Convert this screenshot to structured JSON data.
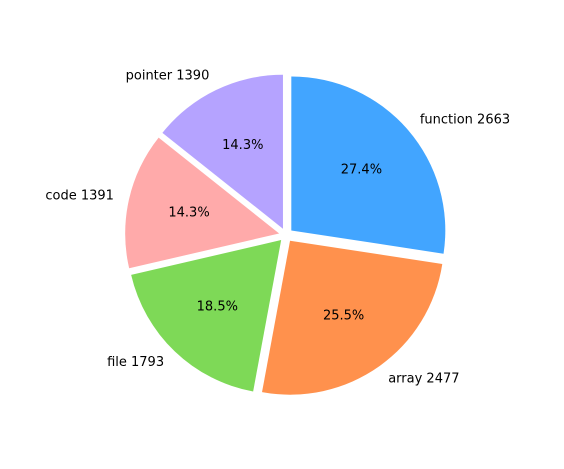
{
  "chart_data": {
    "type": "pie",
    "title": "",
    "start_angle_deg": 90,
    "direction": "clockwise",
    "exploded": true,
    "slices": [
      {
        "label": "function 2663",
        "category": "function",
        "value": 2663,
        "percent_label": "27.4%",
        "color": "#42A5FF"
      },
      {
        "label": "array 2477",
        "category": "array",
        "value": 2477,
        "percent_label": "25.5%",
        "color": "#FF914D"
      },
      {
        "label": "file 1793",
        "category": "file",
        "value": 1793,
        "percent_label": "18.5%",
        "color": "#7ED957"
      },
      {
        "label": "code 1391",
        "category": "code",
        "value": 1391,
        "percent_label": "14.3%",
        "color": "#FFAAAA"
      },
      {
        "label": "pointer 1390",
        "category": "pointer",
        "value": 1390,
        "percent_label": "14.3%",
        "color": "#B5A3FF"
      }
    ]
  }
}
